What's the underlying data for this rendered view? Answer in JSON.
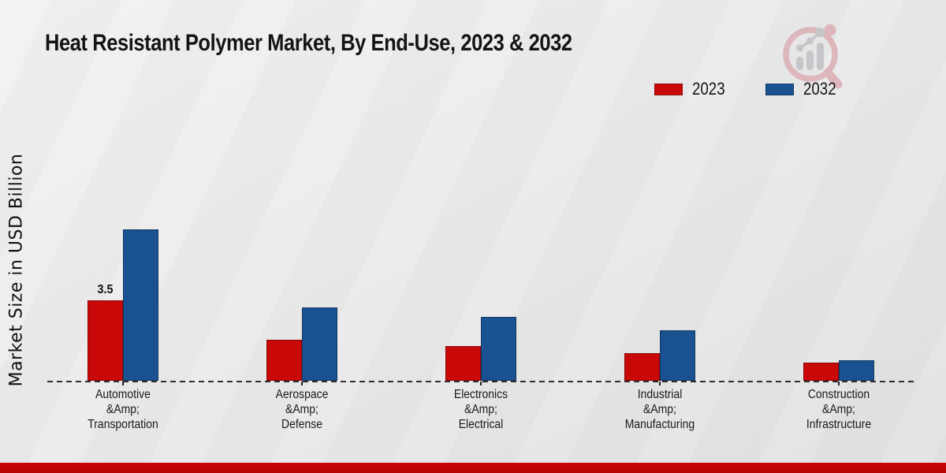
{
  "chart_data": {
    "type": "bar",
    "title": "Heat Resistant Polymer Market, By End-Use, 2023 & 2032",
    "ylabel": "Market Size in USD Billion",
    "xlabel": "",
    "categories": [
      "Automotive\n&Amp;\nTransportation",
      "Aerospace\n&Amp;\nDefense",
      "Electronics\n&Amp;\nElectrical",
      "Industrial\n&Amp;\nManufacturing",
      "Construction\n&Amp;\nInfrastructure"
    ],
    "series": [
      {
        "name": "2023",
        "color": "#c90808",
        "values": [
          3.5,
          1.8,
          1.5,
          1.2,
          0.8
        ]
      },
      {
        "name": "2032",
        "color": "#1a5190",
        "values": [
          6.6,
          3.2,
          2.8,
          2.2,
          0.9
        ]
      }
    ],
    "annotations": [
      {
        "series": "2023",
        "category_index": 0,
        "text": "3.5"
      }
    ],
    "ylim": [
      0,
      7
    ],
    "grid": false,
    "legend_position": "top-right",
    "baseline_style": "dashed"
  },
  "legend": [
    {
      "label": "2023",
      "color": "#c90808"
    },
    {
      "label": "2032",
      "color": "#1a5190"
    }
  ],
  "branding": {
    "logo_icon": "magnifier-bar-chart-logo"
  },
  "footer": {
    "stripe_color": "#c00404"
  }
}
